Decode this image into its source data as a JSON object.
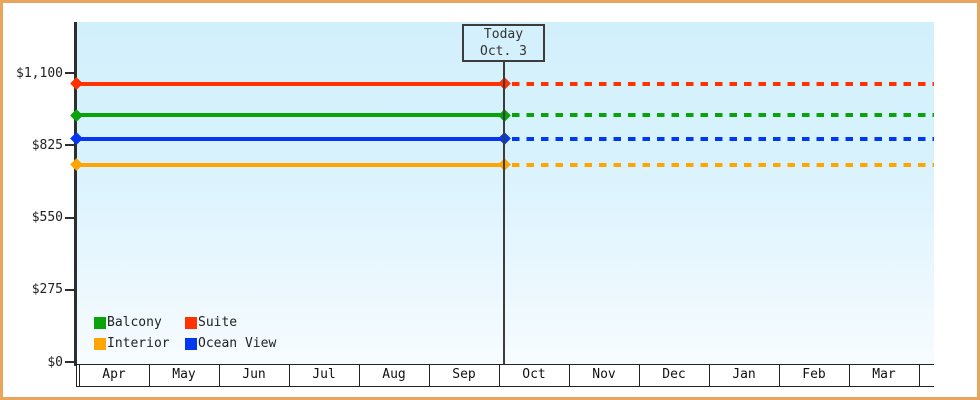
{
  "frame": {
    "border_color": "#eaa55c",
    "background": "#ffffff",
    "plot_background_top": "#d2f0fc",
    "plot_background_bottom": "#f7fcff"
  },
  "chart_data": {
    "type": "line",
    "title": "",
    "x_axis": {
      "months": [
        "Apr",
        "May",
        "Jun",
        "Jul",
        "Aug",
        "Sep",
        "Oct",
        "Nov",
        "Dec",
        "Jan",
        "Feb",
        "Mar"
      ]
    },
    "y_axis": {
      "ticks": [
        {
          "label": "$1,100",
          "value": 1100
        },
        {
          "label": "$825",
          "value": 825
        },
        {
          "label": "$550",
          "value": 550
        },
        {
          "label": "$275",
          "value": 275
        },
        {
          "label": "$0",
          "value": 0
        }
      ],
      "max_tick_value": 1100
    },
    "series": [
      {
        "name": "Suite",
        "color": "#ff3300",
        "value": 1060,
        "style": "solid before today, dashed after"
      },
      {
        "name": "Balcony",
        "color": "#0aa30a",
        "value": 940,
        "style": "solid before today, dashed after"
      },
      {
        "name": "Ocean View",
        "color": "#0437f0",
        "value": 850,
        "style": "solid before today, dashed after"
      },
      {
        "name": "Interior",
        "color": "#ffa502",
        "value": 750,
        "style": "solid before today, dashed after"
      }
    ],
    "today_annotation": {
      "line1": "Today",
      "line2": "Oct. 3",
      "month": "Oct",
      "day": 3
    },
    "legend": {
      "position": "bottom-left",
      "items": [
        {
          "label": "Balcony",
          "color": "#0aa30a"
        },
        {
          "label": "Suite",
          "color": "#ff3300"
        },
        {
          "label": "Interior",
          "color": "#ffa502"
        },
        {
          "label": "Ocean View",
          "color": "#0437f0"
        }
      ]
    }
  }
}
